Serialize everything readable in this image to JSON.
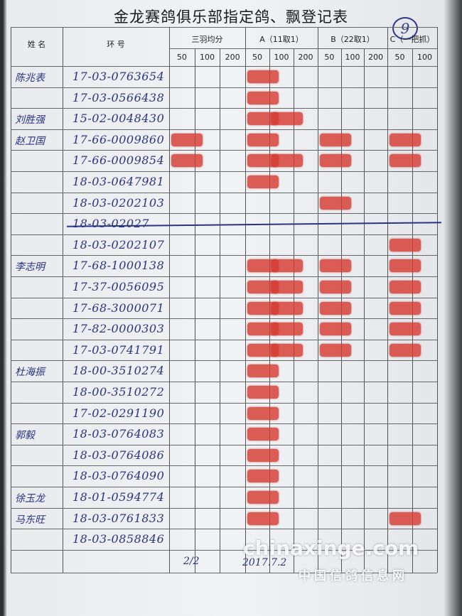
{
  "header": {
    "title": "金龙赛鸽俱乐部指定鸽、飘登记表",
    "sheet_no": "9"
  },
  "table": {
    "columns": [
      {
        "label": "姓 名"
      },
      {
        "label": "环 号"
      },
      {
        "label": "三羽均分",
        "sub": [
          "50",
          "100",
          "200"
        ]
      },
      {
        "label": "A（11取1）",
        "sub": [
          "50",
          "100",
          "200"
        ]
      },
      {
        "label": "B（22取1）",
        "sub": [
          "50",
          "100",
          "200"
        ]
      },
      {
        "label": "C（一把抓）",
        "sub": [
          "50",
          "100"
        ]
      }
    ],
    "rows": [
      {
        "name": "陈兆表",
        "ring": "17-03-0763654"
      },
      {
        "ring": "17-03-0566438"
      },
      {
        "name": "刘胜强",
        "ring": "15-02-0048430"
      },
      {
        "name": "赵卫国",
        "ring": "17-66-0009860"
      },
      {
        "ring": "17-66-0009854"
      },
      {
        "ring": "18-03-0647981"
      },
      {
        "ring": "18-03-0202103"
      },
      {
        "ring": "18-03-02027"
      },
      {
        "ring": "18-03-0202107"
      },
      {
        "name": "李志明",
        "ring": "17-68-1000138"
      },
      {
        "ring": "17-37-0056095"
      },
      {
        "ring": "17-68-3000071"
      },
      {
        "ring": "17-82-0000303"
      },
      {
        "ring": "17-03-0741791"
      },
      {
        "name": "杜海振",
        "ring": "18-00-3510274"
      },
      {
        "ring": "18-00-3510272"
      },
      {
        "ring": "17-02-0291190"
      },
      {
        "name": "郭毅",
        "ring": "18-03-0764083"
      },
      {
        "ring": "18-03-0764086"
      },
      {
        "ring": "18-03-0764090"
      },
      {
        "name": "徐玉龙",
        "ring": "18-01-0594774"
      },
      {
        "name": "马东旺",
        "ring": "18-03-0761833"
      },
      {
        "ring": "18-03-0858846"
      }
    ]
  },
  "footer": {
    "count": "2/2",
    "date": "2017.7.2"
  },
  "watermark": {
    "site": "chinaxinge.com",
    "name": "中国信鸽信息网"
  }
}
